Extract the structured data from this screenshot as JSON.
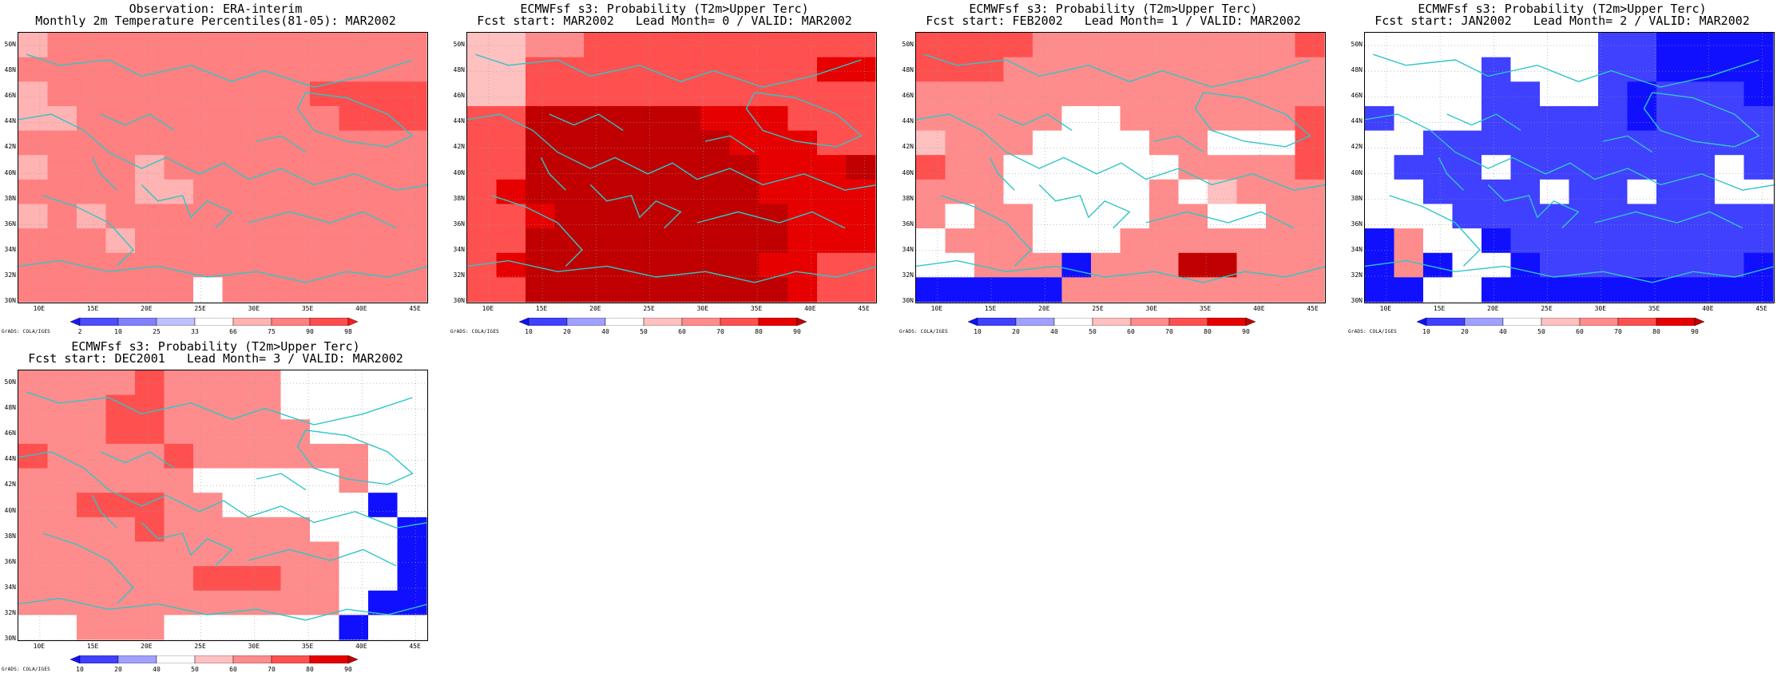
{
  "panels": [
    {
      "id": "obs",
      "title1": "Observation: ERA-interim",
      "title2": "Monthly 2m Temperature Percentiles(81-05): MAR2002",
      "colorbar": {
        "labels": [
          "2",
          "10",
          "25",
          "33",
          "66",
          "75",
          "90",
          "98"
        ],
        "colors": [
          "#1a1aff",
          "#4d4dff",
          "#8080ff",
          "#c0c0ff",
          "#ffffff",
          "#ffb3b3",
          "#ff8080",
          "#ff4d4d",
          "#ff1a1a"
        ]
      },
      "grid": [
        "56666666666666",
        "66666666666666",
        "56666666667777",
        "55666666666777",
        "66666666666666",
        "56665666666666",
        "66665566666666",
        "56566666666666",
        "66656666666666",
        "66666666666666",
        "66666646666666"
      ]
    },
    {
      "id": "lead0",
      "title1": "ECMWFsf s3: Probability (T2m>Upper Terc)",
      "title2": "Fcst start: MAR2002   Lead Month= 0 / VALID: MAR2002",
      "colorbar": {
        "labels": [
          "10",
          "20",
          "40",
          "50",
          "60",
          "70",
          "80",
          "90"
        ],
        "colors": [
          "#1010ff",
          "#4040ff",
          "#a0a0ff",
          "#ffffff",
          "#ffc0c0",
          "#ff8c8c",
          "#ff5050",
          "#e60000",
          "#c00000"
        ]
      },
      "grid": [
        "44556666666666",
        "44666666666677",
        "44666666666666",
        "66888888777666",
        "66888888877766",
        "66888888887778",
        "67888888887777",
        "66788888888777",
        "66888888888777",
        "67888888887766",
        "66888888888766"
      ]
    },
    {
      "id": "lead1",
      "title1": "ECMWFsf s3: Probability (T2m>Upper Terc)",
      "title2": "Fcst start: FEB2002   Lead Month= 1 / VALID: MAR2002",
      "colorbar": {
        "labels": [
          "10",
          "20",
          "40",
          "50",
          "60",
          "70",
          "80",
          "90"
        ],
        "colors": [
          "#1010ff",
          "#4040ff",
          "#a0a0ff",
          "#ffffff",
          "#ffc0c0",
          "#ff8c8c",
          "#ff5050",
          "#e60000",
          "#c00000"
        ]
      },
      "grid": [
        "66665555555556",
        "66655555555555",
        "55555555555555",
        "55555335555556",
        "45553333553336",
        "65533333355556",
        "55533333534555",
        "53553333553355",
        "35553335555555",
        "33555055588555",
        "00000555555555"
      ]
    },
    {
      "id": "lead2",
      "title1": "ECMWFsf s3: Probability (T2m>Upper Terc)",
      "title2": "Fcst start: JAN2002   Lead Month= 2 / VALID: MAR2002",
      "colorbar": {
        "labels": [
          "10",
          "20",
          "40",
          "50",
          "60",
          "70",
          "80",
          "90"
        ],
        "colors": [
          "#1010ff",
          "#4040ff",
          "#a0a0ff",
          "#ffffff",
          "#ffc0c0",
          "#ff8c8c",
          "#ff5050",
          "#e60000",
          "#c00000"
        ]
      },
      "grid": [
        "33333333110000",
        "33331333110000",
        "33331133101110",
        "13331111101111",
        "33111111111111",
        "31113111111131",
        "33111131131133",
        "33311111111111",
        "05330111111111",
        "05033011111110",
        "00330000000000"
      ]
    },
    {
      "id": "lead3",
      "title1": "ECMWFsf s3: Probability (T2m>Upper Terc)",
      "title2": "Fcst start: DEC2001   Lead Month= 3 / VALID: MAR2002",
      "colorbar": {
        "labels": [
          "10",
          "20",
          "40",
          "50",
          "60",
          "70",
          "80",
          "90"
        ],
        "colors": [
          "#1010ff",
          "#4040ff",
          "#a0a0ff",
          "#ffffff",
          "#ffc0c0",
          "#ff8c8c",
          "#ff5050",
          "#e60000",
          "#c00000"
        ]
      },
      "grid": [
        "55556555533333",
        "55566555533333",
        "55566555553333",
        "65555655555533",
        "55555533333533",
        "55666553333303",
        "55556555553330",
        "55555555555330",
        "55555566655330",
        "55555555555300",
        "33555333333033"
      ]
    }
  ],
  "lat_labels": [
    "50N",
    "48N",
    "46N",
    "44N",
    "42N",
    "40N",
    "38N",
    "36N",
    "34N",
    "32N",
    "30N"
  ],
  "lon_labels": [
    "10E",
    "15E",
    "20E",
    "25E",
    "30E",
    "35E",
    "40E",
    "45E"
  ],
  "credit": "GrADS: COLA/IGES"
}
